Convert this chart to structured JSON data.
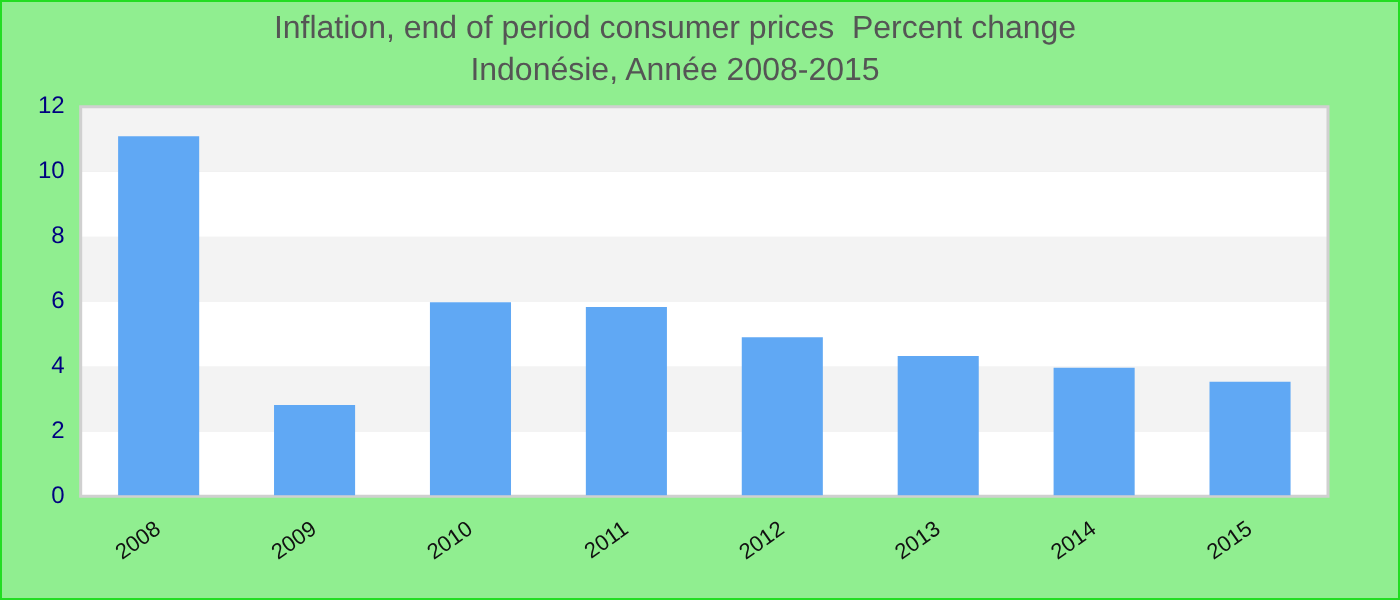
{
  "chart_data": {
    "type": "bar",
    "title": "Inflation, end of period consumer prices  Percent change",
    "subtitle": "Indonésie, Année 2008-2015",
    "categories": [
      "2008",
      "2009",
      "2010",
      "2011",
      "2012",
      "2013",
      "2014",
      "2015"
    ],
    "values": [
      11.09,
      2.81,
      5.98,
      5.83,
      4.9,
      4.32,
      3.96,
      3.53
    ],
    "color": "#60a8f4",
    "ylim": [
      0,
      12
    ],
    "yticks": [
      0,
      2,
      4,
      6,
      8,
      10,
      12
    ],
    "grid": "y",
    "legend": false
  }
}
